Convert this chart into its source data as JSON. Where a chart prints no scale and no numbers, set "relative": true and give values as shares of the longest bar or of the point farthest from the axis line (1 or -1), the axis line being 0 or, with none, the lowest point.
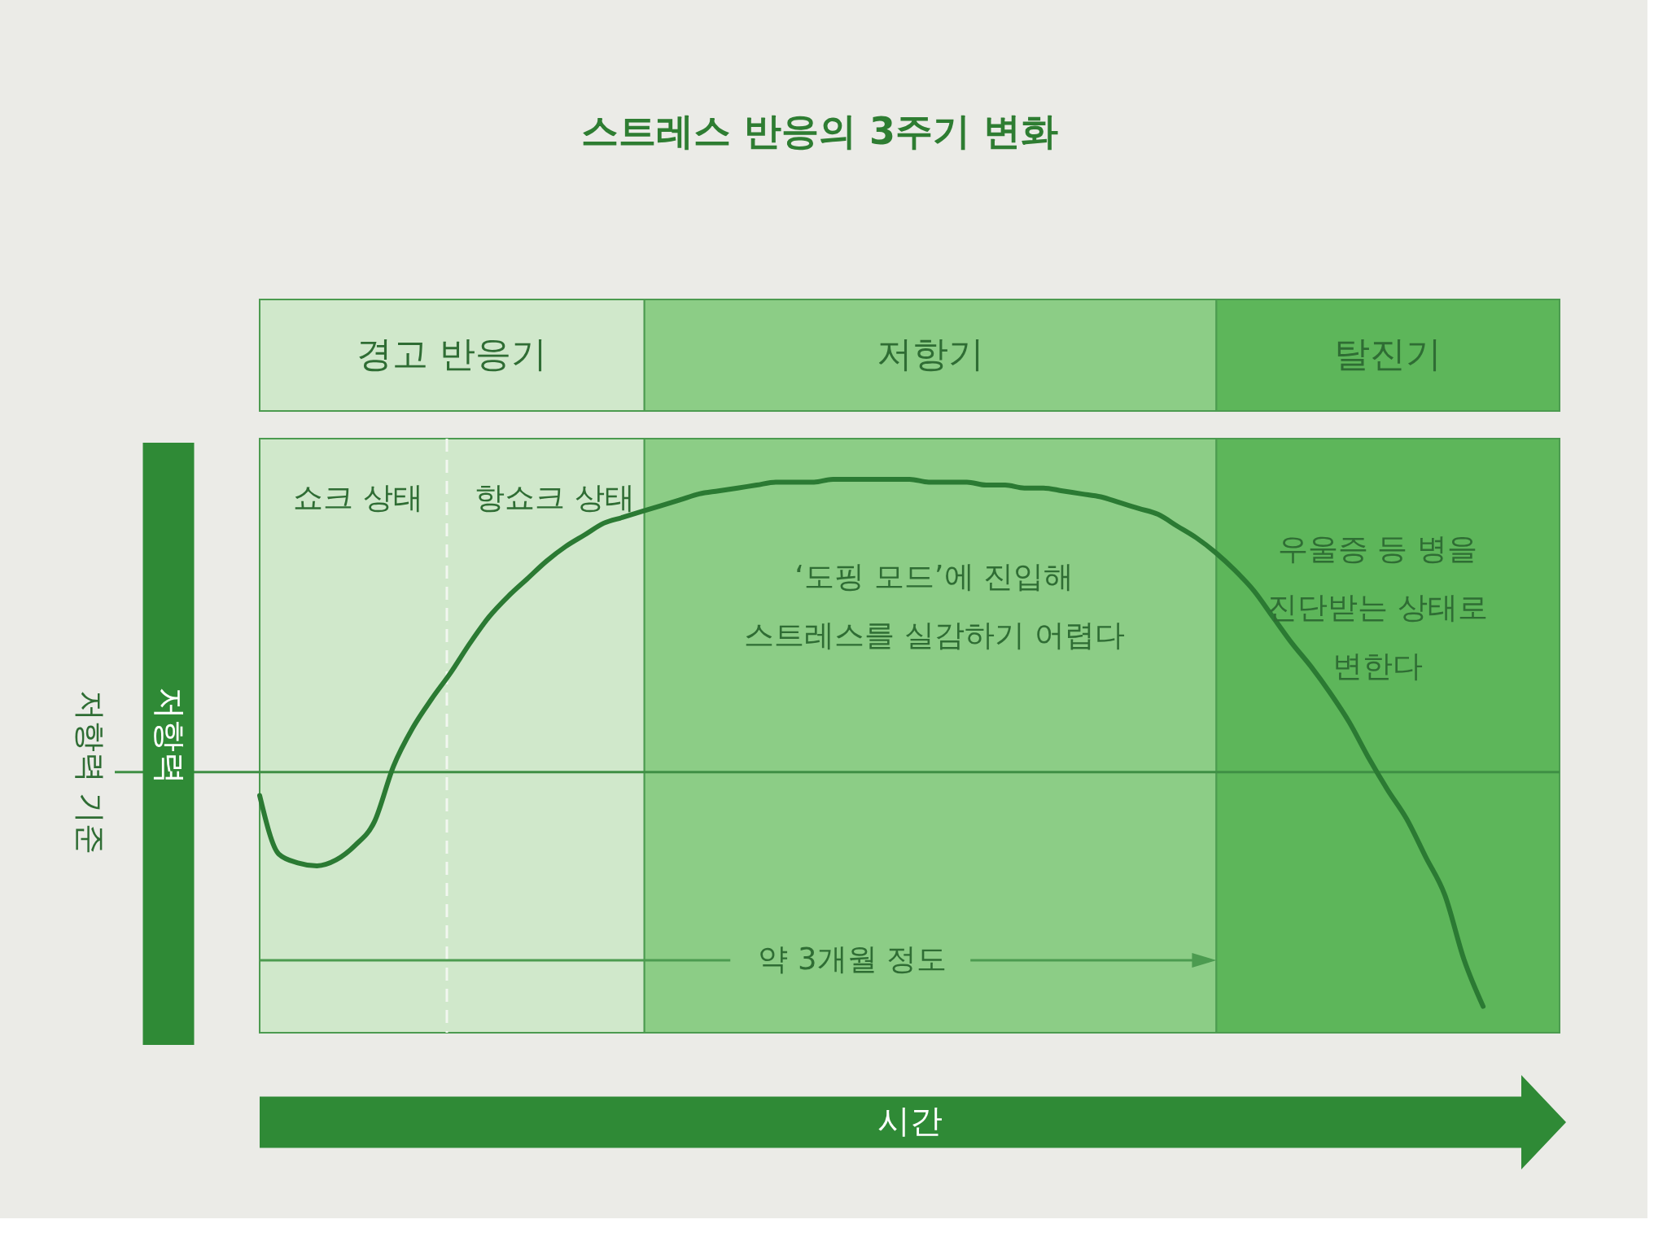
{
  "chart_data": {
    "type": "line",
    "title": "스트레스 반응의 3주기 변화",
    "xlabel": "시간",
    "ylabel": "저항력",
    "relative": true,
    "tick_labels": false,
    "categories": [
      null,
      null,
      null,
      null,
      null,
      null,
      null,
      null,
      null,
      null,
      null,
      null,
      null,
      null,
      null,
      null,
      null,
      null,
      null,
      null,
      null,
      null,
      null,
      null,
      null,
      null,
      null,
      null,
      null,
      null,
      null,
      null,
      null,
      null,
      null,
      null,
      null,
      null,
      null,
      null,
      null,
      null,
      null,
      null,
      null,
      null,
      null,
      null,
      null,
      null,
      null,
      null,
      null,
      null,
      null,
      null,
      null,
      null,
      null,
      null,
      null,
      null,
      null,
      null,
      null,
      null,
      null,
      null,
      null
    ],
    "series": [
      {
        "color": "#2b7a33",
        "values": [
          -0.08,
          -0.28,
          -0.31,
          -0.32,
          -0.3,
          -0.25,
          -0.17,
          0.02,
          0.15,
          0.25,
          0.34,
          0.44,
          0.53,
          0.6,
          0.66,
          0.72,
          0.77,
          0.81,
          0.85,
          0.87,
          0.89,
          0.91,
          0.93,
          0.95,
          0.96,
          0.97,
          0.98,
          0.99,
          0.99,
          0.99,
          1.0,
          1.0,
          1.0,
          1.0,
          1.0,
          0.99,
          0.99,
          0.99,
          0.98,
          0.98,
          0.97,
          0.97,
          0.96,
          0.95,
          0.94,
          0.92,
          0.9,
          0.88,
          0.84,
          0.8,
          0.75,
          0.69,
          0.62,
          0.53,
          0.44,
          0.36,
          0.27,
          0.17,
          0.05,
          -0.06,
          -0.16,
          -0.29,
          -0.42,
          -0.64,
          -0.8,
          null,
          null,
          null,
          null
        ]
      }
    ],
    "ref_lines": [
      {
        "axis": "y",
        "value": 0,
        "label": "저항력 기준",
        "color": "#3f8f45"
      },
      {
        "axis": "x",
        "color": "#f2f7f0",
        "line_style": "dashed"
      }
    ],
    "annotations": [
      "경고 반응기",
      "저항기",
      "탈진기",
      "쇼크 상태",
      "항쇼크 상태",
      "‘도핑 모드’에 진입해\n스트레스를 실감하기 어렵다",
      "우울증 등 병을\n진단받는 상태로\n변한다",
      "약 3개월 정도"
    ]
  }
}
